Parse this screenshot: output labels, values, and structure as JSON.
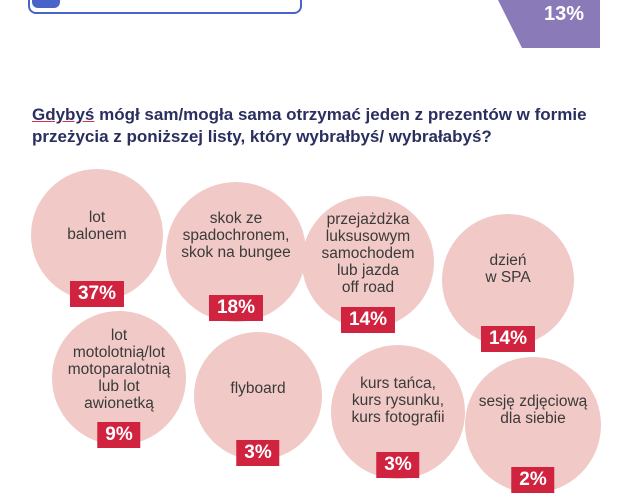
{
  "corner_badge": {
    "value": "13%"
  },
  "question": {
    "underlined_word": "Gdybyś",
    "text": " mógł sam/mogła sama otrzymać jeden z prezentów w formie przeżycia z poniższej listy, który wybrałbyś/ wybrałabyś?"
  },
  "colors": {
    "bubble": "#f1c9c6",
    "badge": "#d0233f",
    "question": "#2b2f5f",
    "accent": "#4a63c8",
    "corner": "#8a7ab8"
  },
  "chart_data": {
    "type": "bubble-list",
    "categories": [
      "lot\nbalonem",
      "skok ze\nspadochronem,\nskok na bungee",
      "przejażdżka\nluksusowym\nsamochodem\nlub jazda\noff road",
      "dzień\nw SPA",
      "lot\nmotolotnią/lot\nmotoparalotnią\nlub lot\nawionetką",
      "flyboard",
      "kurs tańca,\nkurs rysunku,\nkurs fotografii",
      "sesję zdjęciową\ndla siebie"
    ],
    "values": [
      37,
      18,
      14,
      14,
      9,
      3,
      3,
      2
    ],
    "value_labels": [
      "37%",
      "18%",
      "14%",
      "14%",
      "9%",
      "3%",
      "3%",
      "2%"
    ],
    "unit": "%"
  }
}
